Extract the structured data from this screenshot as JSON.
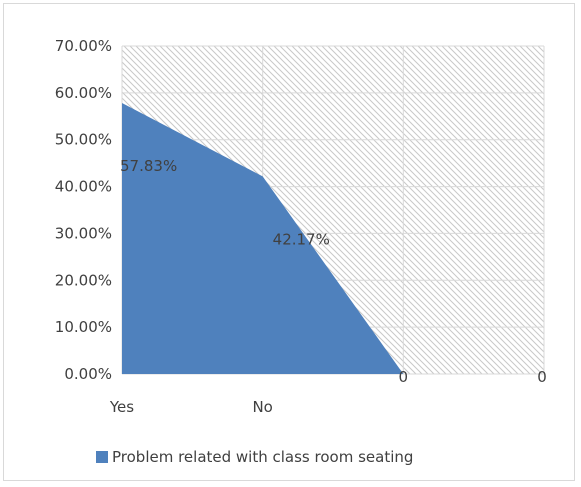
{
  "chart_data": {
    "type": "area",
    "categories": [
      "Yes",
      "No",
      "",
      ""
    ],
    "series": [
      {
        "name": "Problem related with class room seating",
        "values": [
          57.83,
          42.17,
          0,
          0
        ]
      }
    ],
    "data_labels": [
      "57.83%",
      "42.17%",
      "0",
      "0"
    ],
    "y_ticks": [
      "0.00%",
      "10.00%",
      "20.00%",
      "30.00%",
      "40.00%",
      "50.00%",
      "60.00%",
      "70.00%"
    ],
    "ylim": [
      0,
      70
    ],
    "y_unit": "%",
    "grid": true,
    "legend": "bottom",
    "colors": {
      "series": "#4f81bd",
      "grid": "#d9d9d9",
      "hatch": "#c8c8c8",
      "text": "#404040"
    }
  }
}
